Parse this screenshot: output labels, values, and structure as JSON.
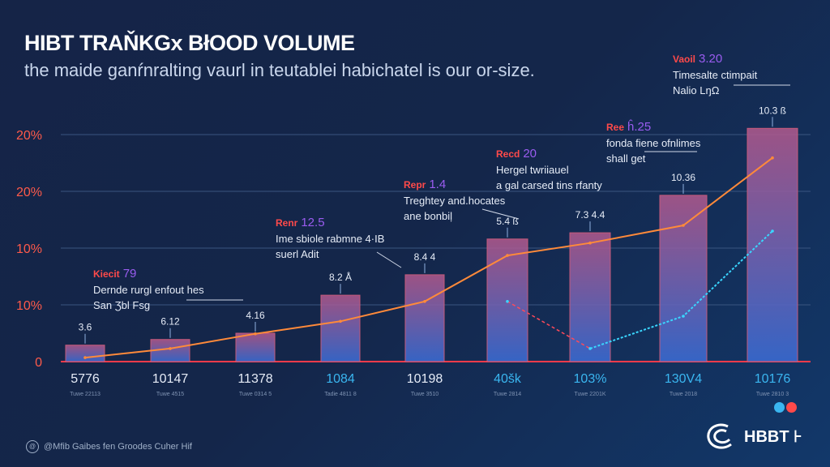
{
  "chart_data": {
    "type": "bar",
    "title": "HIBT TRAŇKGx BłOOD VOLUME",
    "subtitle": "the maide ganŕnralting vaurl in teutablei habichatel is our or-size.",
    "y_tick_labels": [
      "0",
      "10%",
      "10%",
      "20%",
      "20%"
    ],
    "ylim": [
      0,
      40
    ],
    "grid": true,
    "categories": [
      "5776",
      "10147",
      "11378",
      "1084",
      "10198",
      "40šk",
      "103%",
      "130V4",
      "10176"
    ],
    "category_sublabels": [
      "Tuwe 22113",
      "Tuwe 4515",
      "Tuwe 0314 5",
      "Tadie 4811 8",
      "Tuwe 3510",
      "Tuwe 2814",
      "Tuwe 2201K",
      "Tuwe 2018",
      "Tuwe 2810 3"
    ],
    "bar_labels": [
      "3.6",
      "6.12",
      "4.16",
      "8.2 Å",
      "8.4 4",
      "5.4 ß",
      "7.3 4.4",
      "10.36",
      "10.3 ß"
    ],
    "values": [
      2.9,
      3.9,
      5.0,
      11.7,
      15.3,
      21.6,
      22.7,
      29.3,
      41.1
    ],
    "series": [
      {
        "values": [
          0.7,
          2.3,
          4.9,
          7.1,
          10.6,
          18.7,
          20.9,
          24.0,
          35.9
        ],
        "color": "#ff8a3a"
      },
      {
        "values": [
          null,
          null,
          null,
          null,
          null,
          10.6,
          2.3,
          8.0,
          23.0
        ],
        "color": "#3ad6ff"
      }
    ],
    "annotations": [
      {
        "key": "Kiecit",
        "num": "79",
        "lines": [
          "Dernde rurgl enfout hes",
          "San Ʒbl Fsg"
        ]
      },
      {
        "key": "Renr",
        "num": "12.5",
        "lines": [
          "Ime sbiole rabmne 4·IB",
          "suerl Adit"
        ]
      },
      {
        "key": "Repr",
        "num": "1.4",
        "lines": [
          "Treghtey and.hocates",
          "ane bonbiļ"
        ]
      },
      {
        "key": "Recd",
        "num": "20",
        "lines": [
          "Hergel twriiauel",
          "a gal carsed tins rfanty"
        ]
      },
      {
        "key": "Ree",
        "num": "ĥ.25",
        "lines": [
          "fonda fiene ofnlimes",
          "shall get"
        ]
      },
      {
        "key": "Vaoil",
        "num": "3.20",
        "lines": [
          "Timesalte ctimpait",
          "Nalio LŋΩ"
        ]
      }
    ]
  },
  "footer": {
    "text": "@Mfib Gaibes fen Groodes Cuher Hif"
  },
  "logo": {
    "text": "HBBT ⊦"
  },
  "colors": {
    "bar": "#8a5fa8",
    "line": "#ff8a3a",
    "line2": "#3ad6ff",
    "axis": "#ff3b4a",
    "dot1": "#3ab6f0",
    "dot2": "#ff4a4a"
  }
}
